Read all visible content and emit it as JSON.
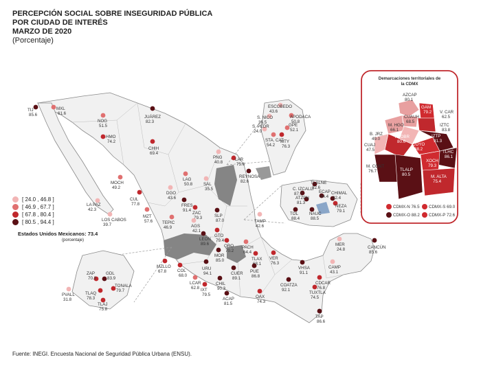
{
  "header": {
    "title_lines": [
      "PERCEPCIÓN SOCIAL SOBRE INSEGURIDAD PÚBLICA",
      "POR CIUDAD DE INTERÉS",
      "MARZO DE 2020"
    ],
    "subtitle": "(Porcentaje)"
  },
  "legend": {
    "items": [
      {
        "label": "[ 24.0 , 46.8 ]",
        "color": "#f2b5b5"
      },
      {
        "label": "[ 46.9 , 67.7 ]",
        "color": "#e07070"
      },
      {
        "label": "[ 67.8 , 80.4 ]",
        "color": "#c0282d"
      },
      {
        "label": "[ 80.5 , 94.4 ]",
        "color": "#5a1015"
      }
    ]
  },
  "national": {
    "label": "Estados Unidos Mexicanos:  73.4",
    "sub": "(porcentaje)"
  },
  "inset_cdmx": {
    "title_lines": [
      "Demarcaciones territoriales de",
      "la CDMX"
    ],
    "alcaldias": [
      {
        "name": "AZCAP",
        "value": "80.1"
      },
      {
        "name": "GAM",
        "value": "79.2"
      },
      {
        "name": "CUAUH",
        "value": "68.5"
      },
      {
        "name": "V. CAR",
        "value": "62.5"
      },
      {
        "name": "M. HGO",
        "value": "66.1"
      },
      {
        "name": "IZTC",
        "value": "83.8"
      },
      {
        "name": "B. JRZ",
        "value": "49.0"
      },
      {
        "name": "A. OBR",
        "value": "80.6"
      },
      {
        "name": "COYO",
        "value": "68.2"
      },
      {
        "name": "IZTP",
        "value": "91.3"
      },
      {
        "name": "CUAJ",
        "value": "47.5"
      },
      {
        "name": "TLHC",
        "value": "86.1"
      },
      {
        "name": "XOCH",
        "value": "79.3"
      },
      {
        "name": "M. CONT",
        "value": "76.7"
      },
      {
        "name": "TLALP",
        "value": "80.5"
      },
      {
        "name": "M. ALTA",
        "value": "75.4"
      }
    ],
    "regions": [
      {
        "label": "CDMX-N 76.5",
        "color": "#d02a2f"
      },
      {
        "label": "CDMX-S 69.0",
        "color": "#d02a2f"
      },
      {
        "label": "CDMX-O 88.2",
        "color": "#5a1015"
      },
      {
        "label": "CDMX-P 72.6",
        "color": "#d02a2f"
      }
    ]
  },
  "cities": [
    {
      "name": "TIJ",
      "value": "85.6",
      "level": 4
    },
    {
      "name": "MXL",
      "value": "61.6",
      "level": 2
    },
    {
      "name": "NOG",
      "value": "51.5",
      "level": 2
    },
    {
      "name": "JUÁREZ",
      "value": "82.3",
      "level": 4
    },
    {
      "name": "HMO",
      "value": "74.2",
      "level": 3
    },
    {
      "name": "CHIH",
      "value": "69.4",
      "level": 3
    },
    {
      "name": "MOCH",
      "value": "49.2",
      "level": 2
    },
    {
      "name": "LA PAZ",
      "value": "42.3",
      "level": 1
    },
    {
      "name": "LOS CABOS",
      "value": "39.7",
      "level": 1
    },
    {
      "name": "CUL",
      "value": "77.8",
      "level": 3
    },
    {
      "name": "MZT",
      "value": "57.6",
      "level": 2
    },
    {
      "name": "DGO",
      "value": "43.6",
      "level": 1
    },
    {
      "name": "LAG",
      "value": "50.8",
      "level": 2
    },
    {
      "name": "SAL",
      "value": "35.5",
      "level": 1
    },
    {
      "name": "FRES",
      "value": "91.4",
      "level": 4
    },
    {
      "name": "ZAC",
      "value": "79.3",
      "level": 3
    },
    {
      "name": "TEPIC",
      "value": "46.9",
      "level": 2
    },
    {
      "name": "AGS",
      "value": "42.1",
      "level": 1
    },
    {
      "name": "SLP",
      "value": "87.0",
      "level": 4
    },
    {
      "name": "PNG",
      "value": "40.8",
      "level": 1
    },
    {
      "name": "LAR",
      "value": "75.6",
      "level": 3
    },
    {
      "name": "REYNOSA",
      "value": "82.6",
      "level": 4
    },
    {
      "name": "TAMP",
      "value": "42.6",
      "level": 1
    },
    {
      "name": "GTO",
      "value": "79.4",
      "level": 3
    },
    {
      "name": "LEON",
      "value": "89.6",
      "level": 4
    },
    {
      "name": "QRO",
      "value": "70.2",
      "level": 3
    },
    {
      "name": "MOR",
      "value": "85.0",
      "level": 4
    },
    {
      "name": "PACH",
      "value": "64.4",
      "level": 2
    },
    {
      "name": "TLAX",
      "value": "68.1",
      "level": 3
    },
    {
      "name": "VER",
      "value": "76.3",
      "level": 3
    },
    {
      "name": "PUE",
      "value": "86.8",
      "level": 4
    },
    {
      "name": "CUER",
      "value": "89.1",
      "level": 4
    },
    {
      "name": "MZLLO",
      "value": "67.8",
      "level": 3
    },
    {
      "name": "COL",
      "value": "68.0",
      "level": 3
    },
    {
      "name": "URU",
      "value": "94.1",
      "level": 4
    },
    {
      "name": "LCAR",
      "value": "62.8",
      "level": 2
    },
    {
      "name": "IXT",
      "value": "79.5",
      "level": 3
    },
    {
      "name": "CHIL",
      "value": "90.3",
      "level": 4
    },
    {
      "name": "ACAP",
      "value": "81.5",
      "level": 4
    },
    {
      "name": "OAX",
      "value": "74.3",
      "level": 3
    },
    {
      "name": "VHSA",
      "value": "91.1",
      "level": 4
    },
    {
      "name": "CAMP",
      "value": "43.1",
      "level": 1
    },
    {
      "name": "MER",
      "value": "24.8",
      "level": 1
    },
    {
      "name": "CANCÚN",
      "value": "85.6",
      "level": 4
    },
    {
      "name": "COATZA",
      "value": "92.1",
      "level": 4
    },
    {
      "name": "CDCAR",
      "value": "76.8",
      "level": 3
    },
    {
      "name": "TUXTLA",
      "value": "74.5",
      "level": 3
    },
    {
      "name": "TAP",
      "value": "86.6",
      "level": 4
    },
    {
      "name": "ESCOBEDO",
      "value": "43.6",
      "level": 1
    },
    {
      "name": "S. NICO",
      "value": "36.5",
      "level": 1
    },
    {
      "name": "APODACA",
      "value": "50.8",
      "level": 2
    },
    {
      "name": "S. PEDR",
      "value": "24.0",
      "level": 1
    },
    {
      "name": "GPE",
      "value": "52.1",
      "level": 2
    },
    {
      "name": "STA. CAT",
      "value": "54.2",
      "level": 2
    },
    {
      "name": "MTY",
      "value": "76.3",
      "level": 3
    },
    {
      "name": "TLALNE",
      "value": "82.6",
      "level": 4
    },
    {
      "name": "C. IZCALLI",
      "value": "87.7",
      "level": 4
    },
    {
      "name": "ECAP",
      "value": "94.4",
      "level": 4
    },
    {
      "name": "CHIMAL",
      "value": "82.4",
      "level": 4
    },
    {
      "name": "ATZPN",
      "value": "81.3",
      "level": 4
    },
    {
      "name": "NEZA",
      "value": "79.1",
      "level": 3
    },
    {
      "name": "TOL",
      "value": "88.4",
      "level": 4
    },
    {
      "name": "NAUC",
      "value": "88.5",
      "level": 4
    },
    {
      "name": "ZAP",
      "value": "70.8",
      "level": 3
    },
    {
      "name": "GDL",
      "value": "83.9",
      "level": 4
    },
    {
      "name": "TONALA",
      "value": "79.7",
      "level": 3
    },
    {
      "name": "TLAQ",
      "value": "78.3",
      "level": 3
    },
    {
      "name": "TLAJ",
      "value": "75.8",
      "level": 3
    },
    {
      "name": "PVALL",
      "value": "31.8",
      "level": 1
    }
  ],
  "source": "Fuente: INEGI. Encuesta Nacional de Seguridad Pública Urbana (ENSU)."
}
